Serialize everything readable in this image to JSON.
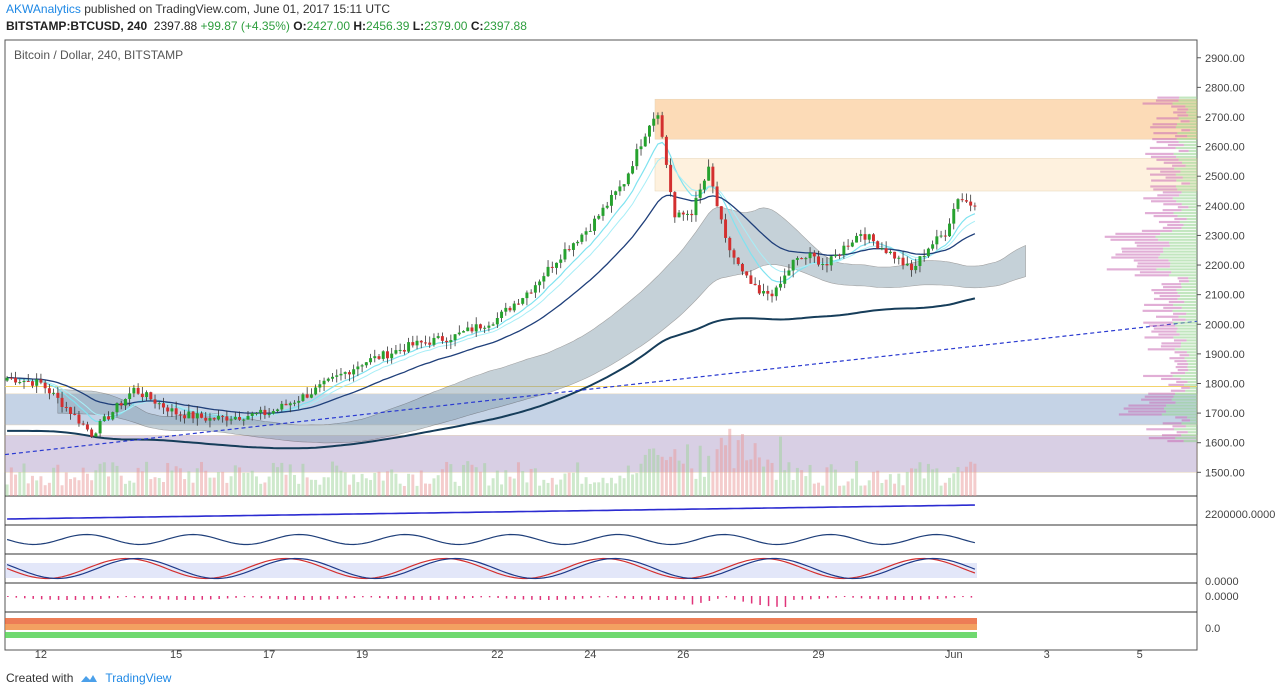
{
  "header": {
    "author": "AKWAnalytics",
    "published_text": "published on TradingView.com, June 01, 2017 15:11 UTC",
    "symbol": "BITSTAMP:BTCUSD, 240",
    "last": "2397.88",
    "change": "+99.87 (+4.35%)",
    "o_label": "O:",
    "o_value": "2427.00",
    "h_label": "H:",
    "h_value": "2456.39",
    "l_label": "L:",
    "l_value": "2379.00",
    "c_label": "C:",
    "c_value": "2397.88"
  },
  "footer": {
    "created_with": "Created with",
    "brand": "TradingView"
  },
  "chart_data": {
    "type": "candlestick",
    "title": "Bitcoin / Dollar, 240, BITSTAMP",
    "ylim": [
      1420,
      2960
    ],
    "y_ticks": [
      "2900.00",
      "2800.00",
      "2700.00",
      "2600.00",
      "2500.00",
      "2400.00",
      "2300.00",
      "2200.00",
      "2100.00",
      "2000.00",
      "1900.00",
      "1800.00",
      "1700.00",
      "1600.00",
      "1500.00"
    ],
    "x_ticks": [
      "12",
      "15",
      "17",
      "19",
      "22",
      "24",
      "26",
      "29",
      "Jun",
      "3",
      "5"
    ],
    "x_tick_index": [
      8,
      40,
      62,
      84,
      116,
      138,
      160,
      192,
      224,
      246,
      268
    ],
    "candle_count": 230,
    "close_path": [
      [
        0,
        1820
      ],
      [
        8,
        1800
      ],
      [
        14,
        1720
      ],
      [
        20,
        1630
      ],
      [
        30,
        1780
      ],
      [
        40,
        1700
      ],
      [
        48,
        1680
      ],
      [
        55,
        1690
      ],
      [
        62,
        1700
      ],
      [
        72,
        1770
      ],
      [
        84,
        1870
      ],
      [
        96,
        1930
      ],
      [
        106,
        1960
      ],
      [
        116,
        2020
      ],
      [
        124,
        2120
      ],
      [
        132,
        2250
      ],
      [
        138,
        2330
      ],
      [
        146,
        2480
      ],
      [
        152,
        2680
      ],
      [
        154,
        2720
      ],
      [
        158,
        2360
      ],
      [
        162,
        2380
      ],
      [
        166,
        2520
      ],
      [
        170,
        2280
      ],
      [
        174,
        2170
      ],
      [
        178,
        2100
      ],
      [
        182,
        2110
      ],
      [
        186,
        2210
      ],
      [
        190,
        2230
      ],
      [
        194,
        2200
      ],
      [
        198,
        2260
      ],
      [
        202,
        2310
      ],
      [
        206,
        2270
      ],
      [
        210,
        2230
      ],
      [
        214,
        2180
      ],
      [
        218,
        2260
      ],
      [
        222,
        2310
      ],
      [
        225,
        2430
      ],
      [
        229,
        2397.88
      ]
    ],
    "zones": [
      {
        "name": "supply-upper",
        "from": 2625,
        "to": 2760,
        "color": "#f9b062"
      },
      {
        "name": "supply-lower",
        "from": 2450,
        "to": 2560,
        "color": "#fde2b8"
      },
      {
        "name": "support-upper",
        "from": 1660,
        "to": 1765,
        "color": "#7f9fc9"
      },
      {
        "name": "support-lower",
        "from": 1500,
        "to": 1625,
        "color": "#a996c4"
      }
    ],
    "lower_panes": {
      "pane1_label": "2200000.0000",
      "pane3_label": "0.0000",
      "pane4_label": "0.0000",
      "pane5_label": "0.0"
    },
    "colors": {
      "up": "#26a22e",
      "down": "#d32f2f",
      "ema_fast": "#7fe3f0",
      "ema_slow": "#1f3f7a",
      "ma200": "#163d5a",
      "trend": "#2b3bd1"
    }
  }
}
